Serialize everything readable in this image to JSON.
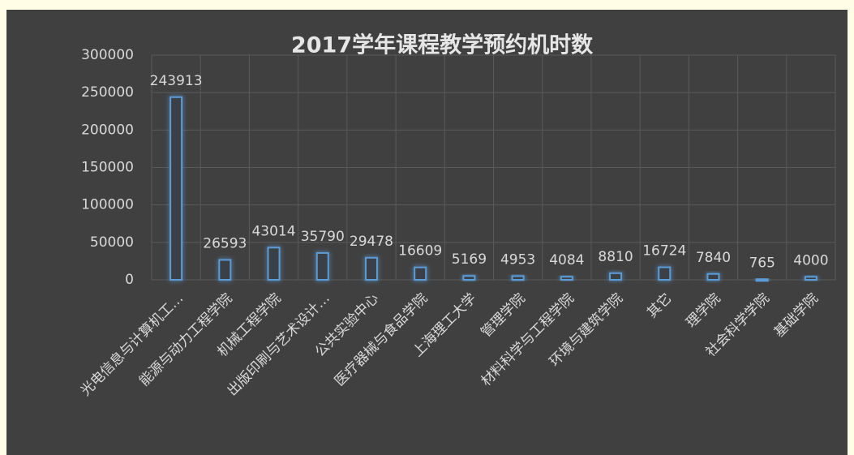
{
  "chart_data": {
    "type": "bar",
    "title": "2017学年课程教学预约机时数",
    "categories": [
      "光电信息与计算机工…",
      "能源与动力工程学院",
      "机械工程学院",
      "出版印刷与艺术设计…",
      "公共实验中心",
      "医疗器械与食品学院",
      "上海理工大学",
      "管理学院",
      "材料科学与工程学院",
      "环境与建筑学院",
      "其它",
      "理学院",
      "社会科学学院",
      "基础学院"
    ],
    "values": [
      243913,
      26593,
      43014,
      35790,
      29478,
      16609,
      5169,
      4953,
      4084,
      8810,
      16724,
      7840,
      765,
      4000
    ],
    "color": "#5b9bd5",
    "ylim": [
      0,
      300000
    ],
    "yticks": [
      0,
      50000,
      100000,
      150000,
      200000,
      250000,
      300000
    ],
    "grid": true
  }
}
